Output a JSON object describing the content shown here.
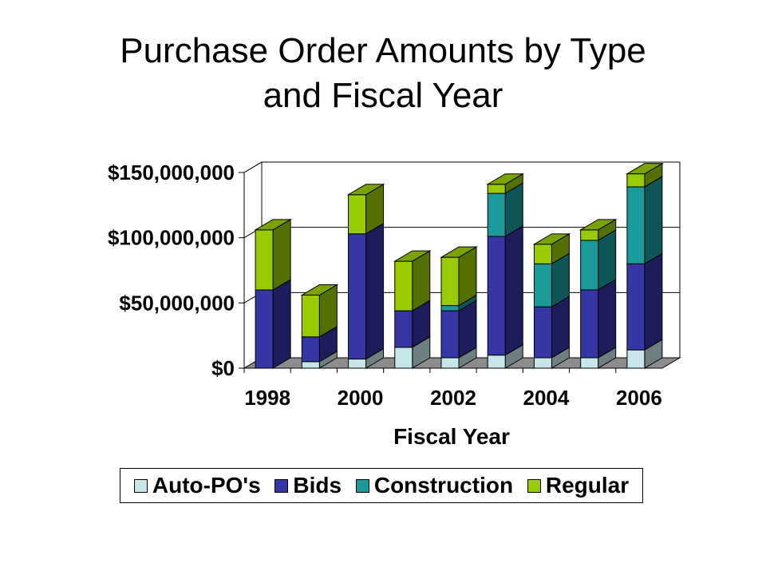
{
  "title": {
    "line1": "Purchase Order Amounts by Type",
    "line2": "and Fiscal Year"
  },
  "chart_data": {
    "type": "bar",
    "stacked": true,
    "three_d": true,
    "title": "Purchase Order Amounts by Type and Fiscal Year",
    "xlabel": "Fiscal Year",
    "ylabel": "",
    "categories": [
      1998,
      1999,
      2000,
      2001,
      2002,
      2003,
      2004,
      2005,
      2006
    ],
    "x_tick_labels": [
      "1998",
      "2000",
      "2002",
      "2004",
      "2006"
    ],
    "y_tick_labels": [
      "$0",
      "$50,000,000",
      "$100,000,000",
      "$150,000,000"
    ],
    "y_ticks": [
      0,
      50000000,
      100000000,
      150000000
    ],
    "ylim": [
      0,
      150000000
    ],
    "grid": true,
    "legend_position": "bottom",
    "series": [
      {
        "name": "Auto-PO's",
        "color": "#c6e6ea",
        "values": [
          0,
          5000000,
          7000000,
          16000000,
          8000000,
          10000000,
          8000000,
          8000000,
          14000000
        ]
      },
      {
        "name": "Bids",
        "color": "#3535a5",
        "values": [
          60000000,
          19000000,
          96000000,
          28000000,
          36000000,
          91000000,
          39000000,
          52000000,
          66000000
        ]
      },
      {
        "name": "Construction",
        "color": "#1a9a9a",
        "values": [
          0,
          0,
          0,
          0,
          4000000,
          33000000,
          33000000,
          38000000,
          59000000
        ]
      },
      {
        "name": "Regular",
        "color": "#99cc00",
        "values": [
          46000000,
          32000000,
          30000000,
          38000000,
          37000000,
          7000000,
          15000000,
          8000000,
          10000000
        ]
      }
    ]
  }
}
